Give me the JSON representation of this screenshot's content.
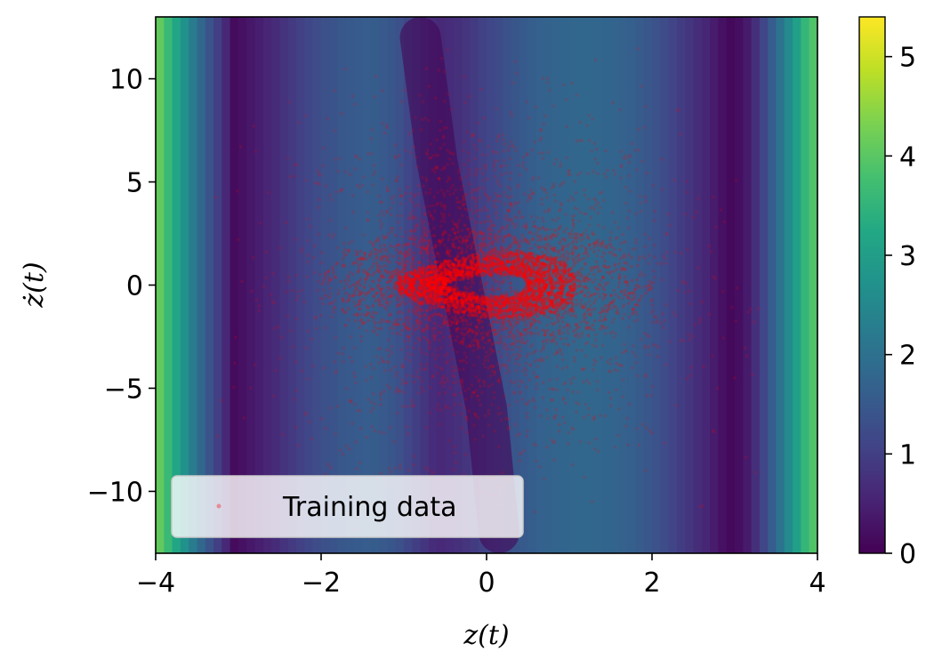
{
  "chart_data": {
    "type": "heatmap",
    "xlabel": "z(t)",
    "ylabel": "ż(t)",
    "xlim": [
      -4,
      4
    ],
    "ylim": [
      -13,
      13
    ],
    "x_ticks": [
      {
        "value": -4,
        "label": "−4"
      },
      {
        "value": -2,
        "label": "−2"
      },
      {
        "value": 0,
        "label": "0"
      },
      {
        "value": 2,
        "label": "2"
      },
      {
        "value": 4,
        "label": "4"
      }
    ],
    "y_ticks": [
      {
        "value": -10,
        "label": "−10"
      },
      {
        "value": -5,
        "label": "−5"
      },
      {
        "value": 0,
        "label": "0"
      },
      {
        "value": 5,
        "label": "5"
      },
      {
        "value": 10,
        "label": "10"
      }
    ],
    "colorbar": {
      "colormap": "viridis",
      "range": [
        0,
        5.4
      ],
      "ticks": [
        {
          "value": 0,
          "label": "0"
        },
        {
          "value": 1,
          "label": "1"
        },
        {
          "value": 2,
          "label": "2"
        },
        {
          "value": 3,
          "label": "3"
        },
        {
          "value": 4,
          "label": "4"
        },
        {
          "value": 5,
          "label": "5"
        }
      ]
    },
    "heatmap_profile": {
      "x": [
        -4.0,
        -3.8,
        -3.5,
        -3.2,
        -3.05,
        -2.9,
        -2.6,
        -2.2,
        -1.8,
        -1.4,
        -1.1,
        -0.9,
        -0.6,
        -0.3,
        0.0,
        0.3,
        0.6,
        0.9,
        1.2,
        1.5,
        1.8,
        2.1,
        2.4,
        2.7,
        2.9,
        3.0,
        3.15,
        3.3,
        3.5,
        3.7,
        3.9,
        4.0
      ],
      "value": [
        4.3,
        3.4,
        2.0,
        0.8,
        0.15,
        0.3,
        0.6,
        1.1,
        1.45,
        1.6,
        1.4,
        1.05,
        0.6,
        0.75,
        1.1,
        1.4,
        1.65,
        1.75,
        1.8,
        1.75,
        1.6,
        1.3,
        0.9,
        0.5,
        0.15,
        0.1,
        0.4,
        0.9,
        1.8,
        2.8,
        3.8,
        4.0
      ],
      "dark_valleys": [
        {
          "x": [
            -0.8,
            -0.6,
            -0.4,
            -0.2,
            0.0,
            0.15
          ],
          "zdot": [
            12,
            6,
            2,
            -2,
            -6,
            -12
          ]
        }
      ]
    },
    "series": [
      {
        "name": "Training data",
        "marker": "point",
        "color": "#ff0000",
        "alpha": 0.15,
        "description_points": [
          {
            "kind": "limit-cycle",
            "x_range": [
              -1.0,
              1.1
            ],
            "zdot_range": [
              -1.2,
              1.2
            ]
          },
          {
            "kind": "scatter-cloud",
            "x_range": [
              -3.2,
              3.2
            ],
            "zdot_range": [
              -12,
              12
            ]
          }
        ]
      }
    ],
    "legend": {
      "position": "lower-left",
      "entries": [
        "Training data"
      ]
    },
    "grid": false
  },
  "colors": {
    "point": "#ff0000",
    "axes": "#000000",
    "legend_bg": "#ffffff"
  }
}
